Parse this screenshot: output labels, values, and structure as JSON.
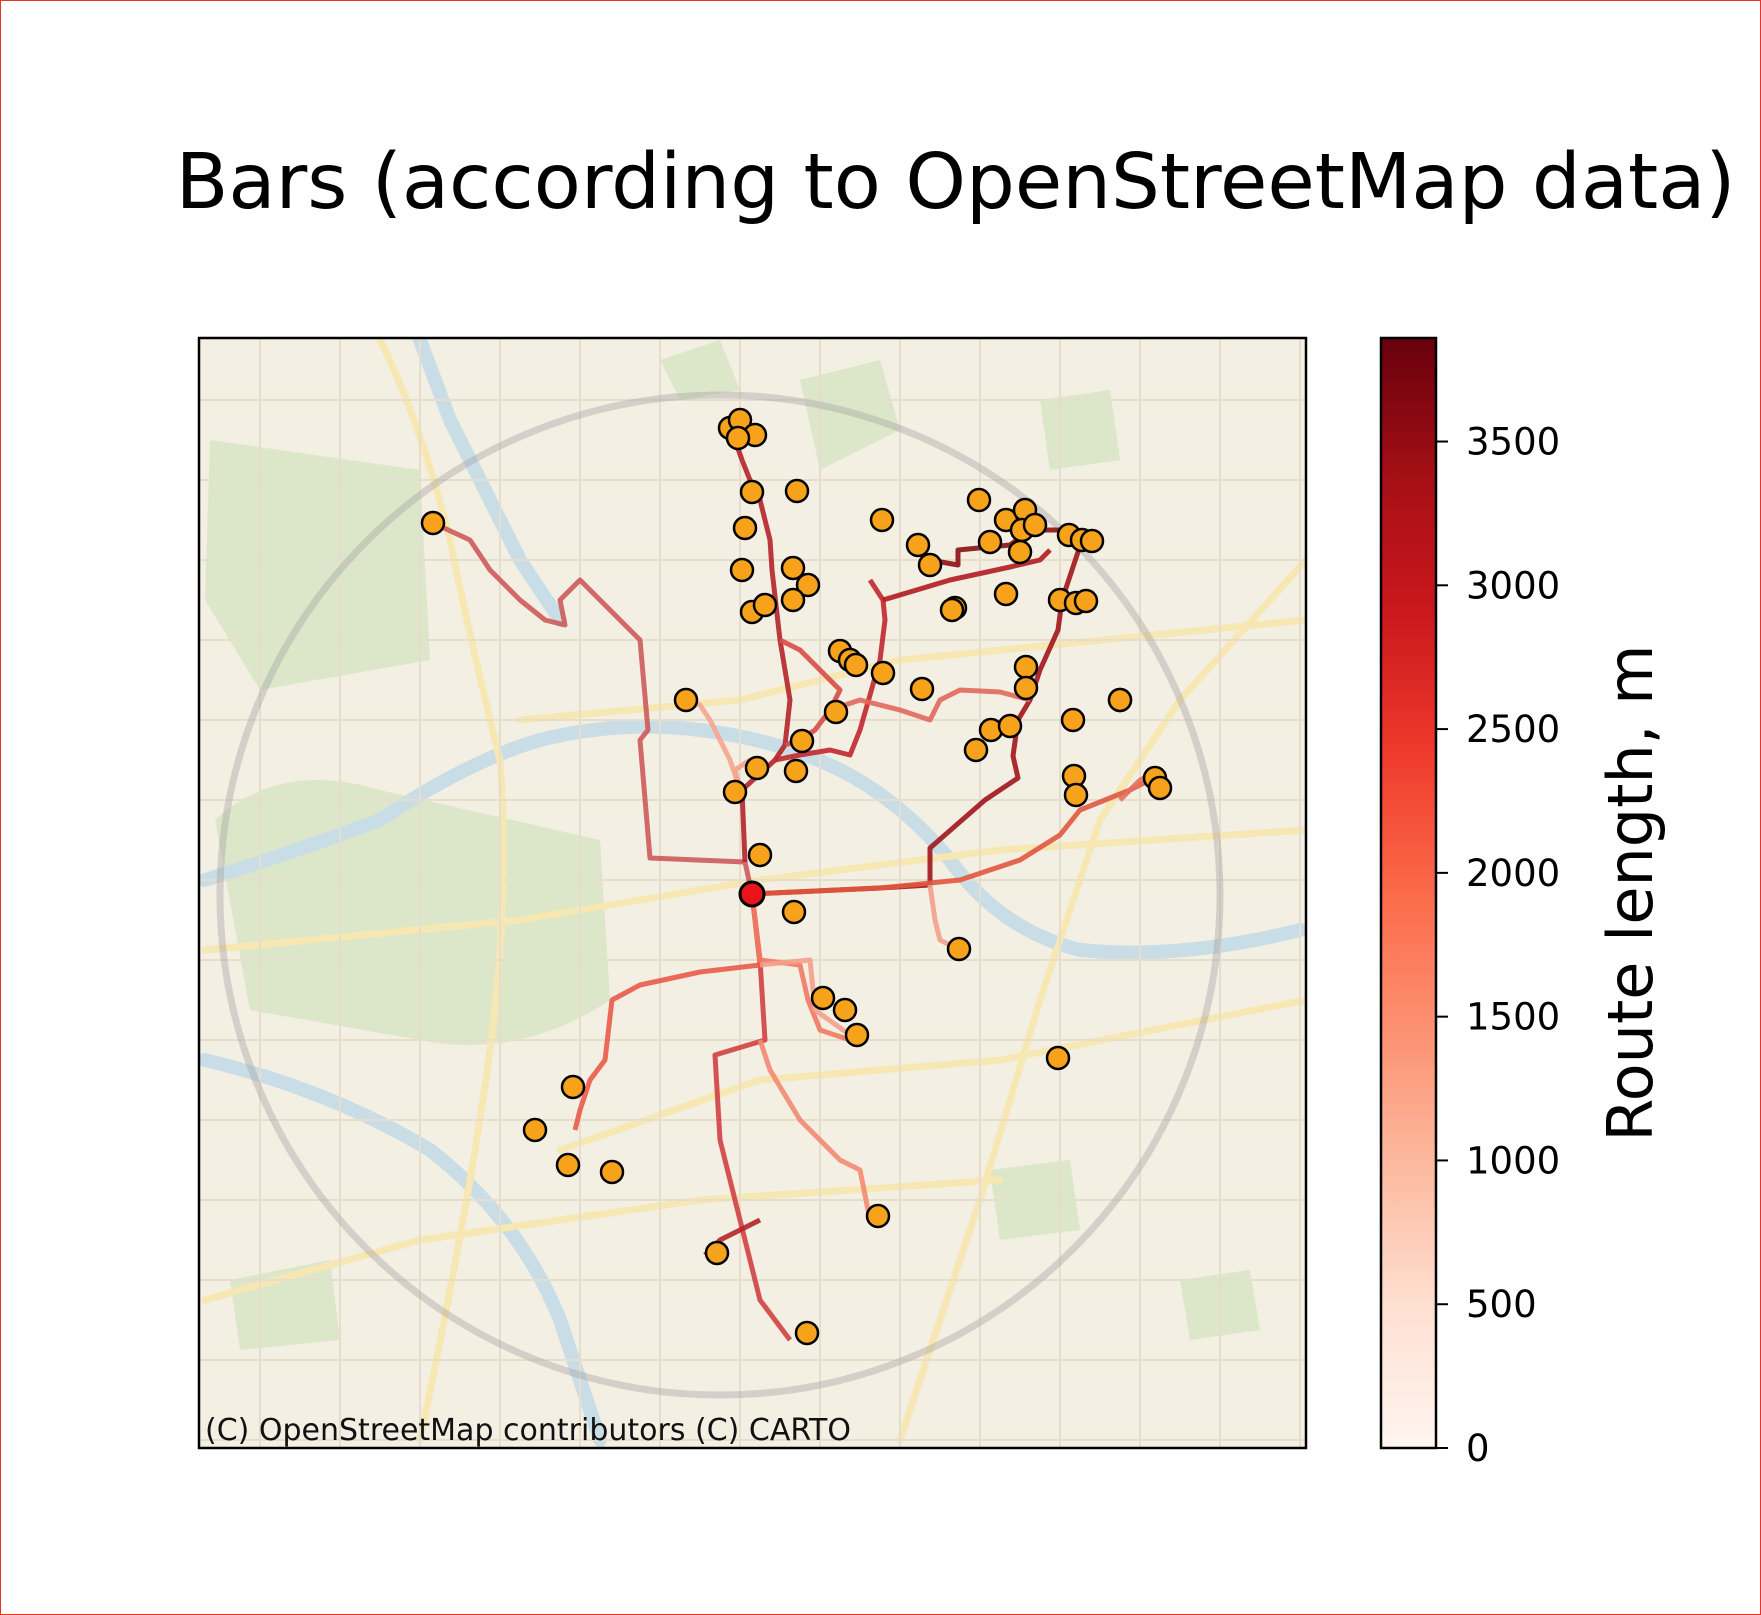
{
  "title": "Bars (according to OpenStreetMap data)",
  "attribution": "(C) OpenStreetMap contributors (C) CARTO",
  "colorbar": {
    "label": "Route length, m",
    "min": 0,
    "max": 3860,
    "ticks": [
      "0",
      "500",
      "1000",
      "1500",
      "2000",
      "2500",
      "3000",
      "3500"
    ],
    "tick_values": [
      0,
      500,
      1000,
      1500,
      2000,
      2500,
      3000,
      3500
    ],
    "colormap": "Reds",
    "colors": [
      "#fff5f0",
      "#fee0d2",
      "#fcbba1",
      "#fc9272",
      "#fb6a4a",
      "#ef3b2c",
      "#cb181d",
      "#a50f15",
      "#67000d"
    ]
  },
  "map": {
    "basemap": "CARTO Voyager (faded)",
    "origin_color": "#e8141a",
    "bar_marker_color": "#f7a21b",
    "marker_edge_color": "#000000",
    "radius_circle_color": "#999999"
  },
  "chart_data": {
    "type": "scatter",
    "title": "Bars (according to OpenStreetMap data)",
    "colorbar_label": "Route length, m",
    "colorbar_range": [
      0,
      3860
    ]
  }
}
